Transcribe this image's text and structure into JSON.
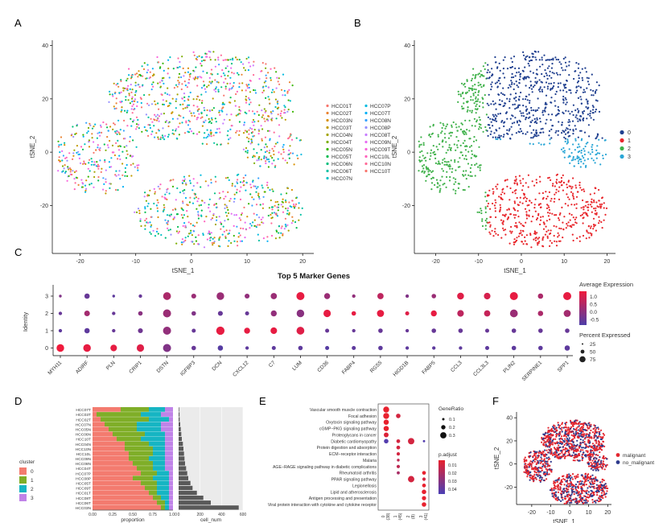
{
  "panel_letters": [
    "A",
    "B",
    "C",
    "D",
    "E",
    "F"
  ],
  "chart_data": [
    {
      "panel": "A",
      "type": "scatter",
      "xlabel": "tSNE_1",
      "ylabel": "tSNE_2",
      "xlim": [
        -25,
        22
      ],
      "ylim": [
        -38,
        42
      ],
      "x_ticks": [
        -20,
        -10,
        0,
        10,
        20
      ],
      "y_ticks": [
        -20,
        0,
        20,
        40
      ],
      "legend_position": "right",
      "legend": [
        "HCC01T",
        "HCC02T",
        "HCC03N",
        "HCC03T",
        "HCC04N",
        "HCC04T",
        "HCC05N",
        "HCC05T",
        "HCC06N",
        "HCC06T",
        "HCC07N",
        "HCC07P",
        "HCC07T",
        "HCC08N",
        "HCC08P",
        "HCC08T",
        "HCC09N",
        "HCC09T",
        "HCC10L",
        "HCC10N",
        "HCC10T"
      ],
      "colors": [
        "#f8766d",
        "#ea8331",
        "#d89000",
        "#c09b00",
        "#a3a500",
        "#7cae00",
        "#39b600",
        "#00bb4e",
        "#00bf7d",
        "#00c1a3",
        "#00bfc4",
        "#00bae0",
        "#00b0f6",
        "#35a2ff",
        "#9590ff",
        "#c77cff",
        "#e76bf3",
        "#fa62db",
        "#ff62bc",
        "#ff6a98",
        "#f8766d"
      ]
    },
    {
      "panel": "B",
      "type": "scatter",
      "xlabel": "tSNE_1",
      "ylabel": "tSNE_2",
      "xlim": [
        -25,
        22
      ],
      "ylim": [
        -38,
        42
      ],
      "x_ticks": [
        -20,
        -10,
        0,
        10,
        20
      ],
      "y_ticks": [
        -20,
        0,
        20,
        40
      ],
      "legend_position": "right",
      "legend": [
        "0",
        "1",
        "2",
        "3"
      ],
      "colors": [
        "#1f3f8f",
        "#e8262b",
        "#3fb14a",
        "#2aa6d6"
      ]
    },
    {
      "panel": "C",
      "type": "dotplot",
      "title": "Top 5 Marker Genes",
      "ylabel": "Identity",
      "genes": [
        "MYH11",
        "ADIRF",
        "PLN",
        "CRIP1",
        "DSTN",
        "IGFBP3",
        "DCN",
        "CXCL12",
        "C7",
        "LUM",
        "CD36",
        "FABP4",
        "RGS5",
        "HIGD1B",
        "FABP5",
        "CCL3",
        "CCL3L3",
        "PLIN2",
        "SERPINE1",
        "SPP1"
      ],
      "identities": [
        "3",
        "2",
        "1",
        "0"
      ],
      "size_legend_title": "Percent Expressed",
      "size_legend": [
        "25",
        "50",
        "75"
      ],
      "color_legend_title": "Average Expression",
      "color_legend": [
        "1.0",
        "0.5",
        "0.0",
        "-0.5"
      ],
      "color_low": "#4d3ea8",
      "color_high": "#f01a3c",
      "pct": [
        [
          5,
          30,
          5,
          10,
          75,
          25,
          70,
          25,
          45,
          80,
          40,
          10,
          45,
          10,
          20,
          55,
          50,
          80,
          30,
          80
        ],
        [
          10,
          35,
          10,
          20,
          80,
          20,
          25,
          15,
          40,
          70,
          65,
          20,
          60,
          15,
          40,
          50,
          45,
          75,
          30,
          60
        ],
        [
          10,
          30,
          10,
          25,
          80,
          15,
          85,
          40,
          50,
          75,
          15,
          10,
          20,
          10,
          20,
          20,
          15,
          20,
          20,
          20
        ],
        [
          70,
          70,
          50,
          65,
          80,
          20,
          30,
          10,
          15,
          20,
          15,
          15,
          20,
          10,
          10,
          10,
          15,
          20,
          20,
          30
        ]
      ],
      "expr": [
        [
          0.0,
          -0.3,
          -0.4,
          -0.3,
          0.5,
          0.3,
          0.3,
          0.2,
          0.3,
          1.2,
          0.3,
          0.2,
          0.7,
          0.0,
          0.3,
          1.1,
          1.0,
          1.2,
          0.5,
          1.2
        ],
        [
          -0.3,
          0.4,
          -0.3,
          0.1,
          0.3,
          0.0,
          -0.3,
          -0.3,
          0.2,
          0.1,
          1.2,
          1.2,
          1.2,
          1.1,
          1.2,
          0.7,
          0.8,
          0.3,
          0.5,
          0.4
        ],
        [
          -0.4,
          -0.4,
          -0.3,
          -0.2,
          0.2,
          -0.3,
          1.2,
          1.2,
          1.2,
          1.1,
          -0.3,
          -0.3,
          -0.3,
          -0.3,
          -0.3,
          -0.3,
          -0.3,
          -0.3,
          -0.3,
          -0.3
        ],
        [
          1.3,
          1.2,
          1.2,
          1.1,
          0.0,
          -0.3,
          -0.5,
          -0.4,
          -0.4,
          -0.4,
          -0.5,
          -0.4,
          -0.4,
          -0.4,
          -0.4,
          -0.4,
          -0.4,
          -0.4,
          -0.4,
          -0.4
        ]
      ]
    },
    {
      "panel": "D-left",
      "type": "bar",
      "xlabel": "proportion",
      "x_ticks": [
        "0.00",
        "0.25",
        "0.50",
        "0.75",
        "1.00"
      ],
      "legend_title": "cluster",
      "series": [
        {
          "name": "0",
          "color": "#f37b6f"
        },
        {
          "name": "1",
          "color": "#7fae28"
        },
        {
          "name": "2",
          "color": "#16b5c3"
        },
        {
          "name": "3",
          "color": "#c083e8"
        }
      ],
      "categories": [
        "HCC07T",
        "HCC03T",
        "HCC02T",
        "HCC07N",
        "HCC05N",
        "HCC06N",
        "HCC10T",
        "HCC04N",
        "HCC10N",
        "HCC10L",
        "HCC09N",
        "HCC08N",
        "HCC04T",
        "HCC07P",
        "HCC08P",
        "HCC05T",
        "HCC09T",
        "HCC01T",
        "HCC08T",
        "HCC06T",
        "HCC03N"
      ],
      "proportions": [
        [
          0.35,
          0.35,
          0.2,
          0.1
        ],
        [
          0.05,
          0.55,
          0.25,
          0.15
        ],
        [
          0.1,
          0.6,
          0.25,
          0.05
        ],
        [
          0.15,
          0.4,
          0.3,
          0.15
        ],
        [
          0.2,
          0.35,
          0.3,
          0.15
        ],
        [
          0.25,
          0.4,
          0.25,
          0.1
        ],
        [
          0.3,
          0.3,
          0.3,
          0.1
        ],
        [
          0.4,
          0.3,
          0.2,
          0.1
        ],
        [
          0.4,
          0.35,
          0.15,
          0.1
        ],
        [
          0.45,
          0.3,
          0.15,
          0.1
        ],
        [
          0.45,
          0.25,
          0.2,
          0.1
        ],
        [
          0.5,
          0.25,
          0.15,
          0.1
        ],
        [
          0.55,
          0.2,
          0.15,
          0.1
        ],
        [
          0.6,
          0.2,
          0.15,
          0.05
        ],
        [
          0.5,
          0.25,
          0.2,
          0.05
        ],
        [
          0.6,
          0.2,
          0.15,
          0.05
        ],
        [
          0.65,
          0.15,
          0.15,
          0.05
        ],
        [
          0.7,
          0.1,
          0.15,
          0.05
        ],
        [
          0.75,
          0.1,
          0.1,
          0.05
        ],
        [
          0.8,
          0.1,
          0.05,
          0.05
        ],
        [
          0.85,
          0.05,
          0.05,
          0.05
        ]
      ]
    },
    {
      "panel": "D-right",
      "type": "bar",
      "xlabel": "cell_num",
      "x_ticks": [
        "0",
        "200",
        "400",
        "600"
      ],
      "xlim": [
        0,
        600
      ],
      "values": [
        5,
        8,
        10,
        15,
        20,
        25,
        30,
        40,
        45,
        50,
        55,
        60,
        70,
        80,
        90,
        110,
        130,
        170,
        230,
        300,
        560
      ]
    },
    {
      "panel": "E",
      "type": "dotplot",
      "pathways": [
        "Vascular smooth muscle contraction",
        "Focal adhesion",
        "Oxytocin signaling pathway",
        "cGMP−PKG signaling pathway",
        "Proteoglycans in cancer",
        "Diabetic cardiomyopathy",
        "Protein digestion and absorption",
        "ECM−receptor interaction",
        "Malaria",
        "AGE−RAGE signaling pathway in diabetic complications",
        "Rheumatoid arthritis",
        "PPAR signaling pathway",
        "Legionellosis",
        "Lipid and atherosclerosis",
        "Antigen processing and presentation",
        "Viral protein interaction with cytokine and cytokine receptor"
      ],
      "x_labels": [
        "0\n(38)",
        "1\n(45)",
        "2\n(8)",
        "3\n(41)"
      ],
      "size_legend_title": "GeneRatio",
      "size_legend": [
        "0.1",
        "0.2",
        "0.3"
      ],
      "color_legend_title": "p.adjust",
      "color_legend": [
        "0.01",
        "0.02",
        "0.03",
        "0.04"
      ],
      "color_low": "#e8212e",
      "color_high": "#4a3fb5",
      "points": [
        {
          "row": 0,
          "col": 0,
          "ratio": 0.3,
          "p": 0.005
        },
        {
          "row": 1,
          "col": 0,
          "ratio": 0.3,
          "p": 0.005
        },
        {
          "row": 1,
          "col": 1,
          "ratio": 0.2,
          "p": 0.01
        },
        {
          "row": 2,
          "col": 0,
          "ratio": 0.25,
          "p": 0.005
        },
        {
          "row": 3,
          "col": 0,
          "ratio": 0.25,
          "p": 0.005
        },
        {
          "row": 4,
          "col": 0,
          "ratio": 0.22,
          "p": 0.008
        },
        {
          "row": 5,
          "col": 0,
          "ratio": 0.2,
          "p": 0.04
        },
        {
          "row": 5,
          "col": 1,
          "ratio": 0.15,
          "p": 0.01
        },
        {
          "row": 5,
          "col": 2,
          "ratio": 0.33,
          "p": 0.01
        },
        {
          "row": 5,
          "col": 3,
          "ratio": 0.05,
          "p": 0.04
        },
        {
          "row": 6,
          "col": 1,
          "ratio": 0.15,
          "p": 0.01
        },
        {
          "row": 7,
          "col": 1,
          "ratio": 0.12,
          "p": 0.01
        },
        {
          "row": 8,
          "col": 1,
          "ratio": 0.08,
          "p": 0.015
        },
        {
          "row": 9,
          "col": 1,
          "ratio": 0.12,
          "p": 0.015
        },
        {
          "row": 10,
          "col": 1,
          "ratio": 0.1,
          "p": 0.02
        },
        {
          "row": 10,
          "col": 3,
          "ratio": 0.15,
          "p": 0.005
        },
        {
          "row": 11,
          "col": 2,
          "ratio": 0.33,
          "p": 0.01
        },
        {
          "row": 11,
          "col": 3,
          "ratio": 0.12,
          "p": 0.01
        },
        {
          "row": 12,
          "col": 3,
          "ratio": 0.15,
          "p": 0.005
        },
        {
          "row": 13,
          "col": 3,
          "ratio": 0.2,
          "p": 0.005
        },
        {
          "row": 14,
          "col": 3,
          "ratio": 0.18,
          "p": 0.005
        },
        {
          "row": 15,
          "col": 3,
          "ratio": 0.2,
          "p": 0.005
        }
      ]
    },
    {
      "panel": "F",
      "type": "scatter",
      "xlabel": "tSNE_1",
      "ylabel": "tSNE_2",
      "xlim": [
        -28,
        22
      ],
      "ylim": [
        -35,
        45
      ],
      "x_ticks": [
        -20,
        -10,
        0,
        10,
        20
      ],
      "y_ticks": [
        -20,
        0,
        20,
        40
      ],
      "legend_position": "right",
      "legend": [
        "malignant",
        "no_malignant"
      ],
      "colors": [
        "#e3262f",
        "#2d3a8c"
      ]
    }
  ]
}
